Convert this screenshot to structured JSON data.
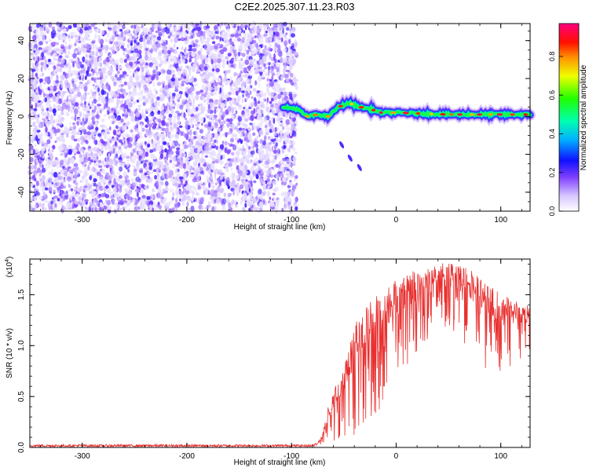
{
  "title": "C2E2.2025.307.11.23.R03",
  "chart_data": [
    {
      "type": "heatmap",
      "xlabel": "Height of straight line (km)",
      "ylabel": "Frequency (Hz)",
      "xlim": [
        -350,
        128
      ],
      "ylim": [
        -50,
        49
      ],
      "xticks": [
        -300,
        -200,
        -100,
        0,
        100
      ],
      "yticks": [
        -40,
        -20,
        0,
        20,
        40
      ],
      "noise_region": {
        "x_range": [
          -350,
          -95
        ],
        "y_range": [
          -50,
          49
        ],
        "amplitude_range": [
          0.0,
          0.25
        ]
      },
      "ridge": {
        "description_points": [
          {
            "x": -110,
            "y": 5
          },
          {
            "x": -95,
            "y": 4
          },
          {
            "x": -85,
            "y": 0
          },
          {
            "x": -75,
            "y": 1
          },
          {
            "x": -65,
            "y": 0
          },
          {
            "x": -55,
            "y": 5
          },
          {
            "x": -45,
            "y": 7
          },
          {
            "x": -35,
            "y": 5
          },
          {
            "x": -25,
            "y": 4
          },
          {
            "x": -15,
            "y": 2
          },
          {
            "x": 0,
            "y": 2
          },
          {
            "x": 50,
            "y": 1
          },
          {
            "x": 100,
            "y": 1
          },
          {
            "x": 128,
            "y": 1
          }
        ],
        "amplitude_range": [
          0.3,
          1.0
        ]
      },
      "secondary_streak": [
        {
          "x": -52,
          "y": -15
        },
        {
          "x": -44,
          "y": -22
        },
        {
          "x": -35,
          "y": -27
        }
      ],
      "colorbar": {
        "label": "Normalized spectral amplitude",
        "ticks": [
          0.0,
          0.2,
          0.4,
          0.6,
          0.8
        ],
        "range": [
          0.0,
          0.97
        ]
      }
    },
    {
      "type": "line",
      "xlabel": "Height of straight line (km)",
      "ylabel": "SNR (10 * v/v)",
      "multiplier_label": "(x10",
      "multiplier_exp": "4",
      "multiplier_close": ")",
      "xlim": [
        -350,
        128
      ],
      "ylim": [
        0.0,
        1.85
      ],
      "xticks": [
        -300,
        -200,
        -100,
        0,
        100
      ],
      "yticks": [
        0.0,
        0.5,
        1.0,
        1.5
      ],
      "color": "#e83030",
      "series": [
        {
          "envelope": [
            {
              "x": -350,
              "y": 0.02
            },
            {
              "x": -100,
              "y": 0.02
            },
            {
              "x": -75,
              "y": 0.04
            },
            {
              "x": -70,
              "y": 0.15
            },
            {
              "x": -65,
              "y": 0.4
            },
            {
              "x": -60,
              "y": 0.55
            },
            {
              "x": -50,
              "y": 0.8
            },
            {
              "x": -40,
              "y": 1.2
            },
            {
              "x": -30,
              "y": 1.4
            },
            {
              "x": -20,
              "y": 1.5
            },
            {
              "x": -10,
              "y": 1.55
            },
            {
              "x": 0,
              "y": 1.65
            },
            {
              "x": 10,
              "y": 1.7
            },
            {
              "x": 20,
              "y": 1.75
            },
            {
              "x": 30,
              "y": 1.8
            },
            {
              "x": 50,
              "y": 1.82
            },
            {
              "x": 70,
              "y": 1.75
            },
            {
              "x": 90,
              "y": 1.6
            },
            {
              "x": 110,
              "y": 1.45
            },
            {
              "x": 128,
              "y": 1.4
            }
          ],
          "lower": [
            {
              "x": -350,
              "y": 0.0
            },
            {
              "x": -100,
              "y": 0.0
            },
            {
              "x": -75,
              "y": 0.02
            },
            {
              "x": -60,
              "y": 0.05
            },
            {
              "x": -40,
              "y": 0.1
            },
            {
              "x": -20,
              "y": 0.3
            },
            {
              "x": 0,
              "y": 0.6
            },
            {
              "x": 20,
              "y": 0.9
            },
            {
              "x": 40,
              "y": 1.2
            },
            {
              "x": 60,
              "y": 1.1
            },
            {
              "x": 80,
              "y": 0.8
            },
            {
              "x": 100,
              "y": 0.7
            },
            {
              "x": 128,
              "y": 0.9
            }
          ]
        }
      ]
    }
  ]
}
